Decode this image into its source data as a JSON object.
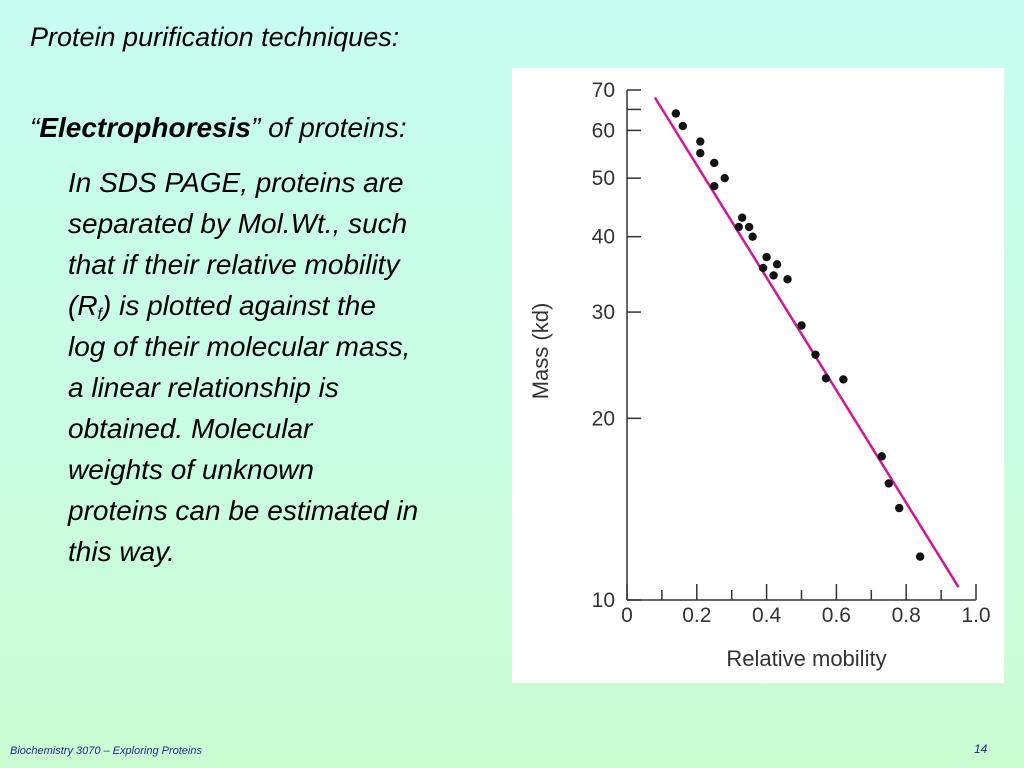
{
  "slide": {
    "title": "Protein purification techniques:",
    "bullet_open_quote": "“",
    "bullet_term": "Electrophoresis",
    "bullet_rest": "” of proteins:",
    "body_lines": [
      "In SDS PAGE, proteins are",
      "separated by Mol.Wt., such",
      "that if their relative mobility"
    ],
    "rf_open": "(R",
    "rf_sub": "f",
    "rf_rest": ") is plotted against the",
    "body_lines_2": [
      "log of their molecular mass,",
      "a linear relationship is",
      "obtained.  Molecular",
      "weights of unknown",
      "proteins can be estimated in",
      "this way."
    ],
    "footer": "Biochemistry 3070 – Exploring Proteins",
    "page_number": "14"
  },
  "chart_data": {
    "type": "scatter",
    "title": "",
    "xlabel": "Relative mobility",
    "ylabel": "Mass (kd)",
    "xlim": [
      0,
      1.0
    ],
    "ylim": [
      10,
      70
    ],
    "y_scale": "log",
    "x_ticks": [
      "0",
      "0.2",
      "0.4",
      "0.6",
      "0.8",
      "1.0"
    ],
    "x_tick_values": [
      0,
      0.2,
      0.4,
      0.6,
      0.8,
      1.0
    ],
    "x_minor_ticks": [
      0.1,
      0.3,
      0.5,
      0.7,
      0.9
    ],
    "y_ticks": [
      "70",
      "60",
      "50",
      "40",
      "30",
      "20",
      "10"
    ],
    "y_tick_values": [
      70,
      60,
      50,
      40,
      30,
      20,
      10
    ],
    "y_minor_ticks": [
      65
    ],
    "grid": false,
    "point_color": "#111111",
    "line_color": "#d4178f",
    "points": [
      {
        "x": 0.14,
        "y": 64
      },
      {
        "x": 0.16,
        "y": 61
      },
      {
        "x": 0.21,
        "y": 57.5
      },
      {
        "x": 0.21,
        "y": 55
      },
      {
        "x": 0.25,
        "y": 53
      },
      {
        "x": 0.25,
        "y": 48.5
      },
      {
        "x": 0.28,
        "y": 50
      },
      {
        "x": 0.32,
        "y": 41.5
      },
      {
        "x": 0.33,
        "y": 43
      },
      {
        "x": 0.35,
        "y": 41.5
      },
      {
        "x": 0.36,
        "y": 40
      },
      {
        "x": 0.39,
        "y": 35.5
      },
      {
        "x": 0.4,
        "y": 37
      },
      {
        "x": 0.42,
        "y": 34.5
      },
      {
        "x": 0.43,
        "y": 36
      },
      {
        "x": 0.46,
        "y": 34
      },
      {
        "x": 0.5,
        "y": 28.5
      },
      {
        "x": 0.54,
        "y": 25.5
      },
      {
        "x": 0.57,
        "y": 23.3
      },
      {
        "x": 0.62,
        "y": 23.2
      },
      {
        "x": 0.73,
        "y": 17.3
      },
      {
        "x": 0.75,
        "y": 15.6
      },
      {
        "x": 0.78,
        "y": 14.2
      },
      {
        "x": 0.84,
        "y": 11.8
      }
    ],
    "fit_line": [
      {
        "x": 0.08,
        "y": 68
      },
      {
        "x": 0.95,
        "y": 10.5
      }
    ]
  }
}
